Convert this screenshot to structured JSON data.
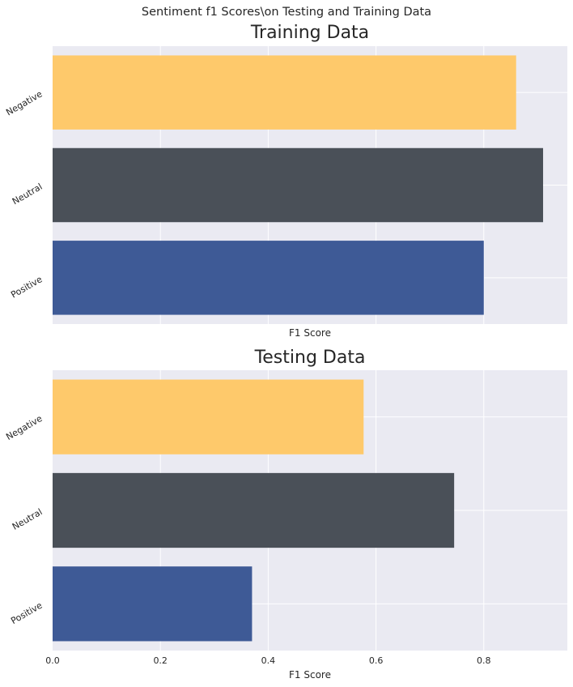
{
  "figure": {
    "suptitle": "Sentiment f1 Scores\\on Testing and Training Data"
  },
  "colors": {
    "axes_background": "#eaeaf2",
    "grid": "#ffffff",
    "Negative": "#fec96b",
    "Neutral": "#4a5058",
    "Positive": "#3e5a96"
  },
  "chart_data": [
    {
      "type": "bar",
      "orientation": "horizontal",
      "title": "Training Data",
      "categories": [
        "Negative",
        "Neutral",
        "Positive"
      ],
      "values": [
        0.86,
        0.91,
        0.8
      ],
      "xlabel": "F1 Score",
      "ylabel": "",
      "xlim": [
        0,
        0.955
      ],
      "xticks": [],
      "grid": true
    },
    {
      "type": "bar",
      "orientation": "horizontal",
      "title": "Testing Data",
      "categories": [
        "Negative",
        "Neutral",
        "Positive"
      ],
      "values": [
        0.577,
        0.745,
        0.37
      ],
      "xlabel": "F1 Score",
      "ylabel": "",
      "xlim": [
        0,
        0.955
      ],
      "xticks": [
        "0.0",
        "0.2",
        "0.4",
        "0.6",
        "0.8"
      ],
      "grid": true
    }
  ]
}
